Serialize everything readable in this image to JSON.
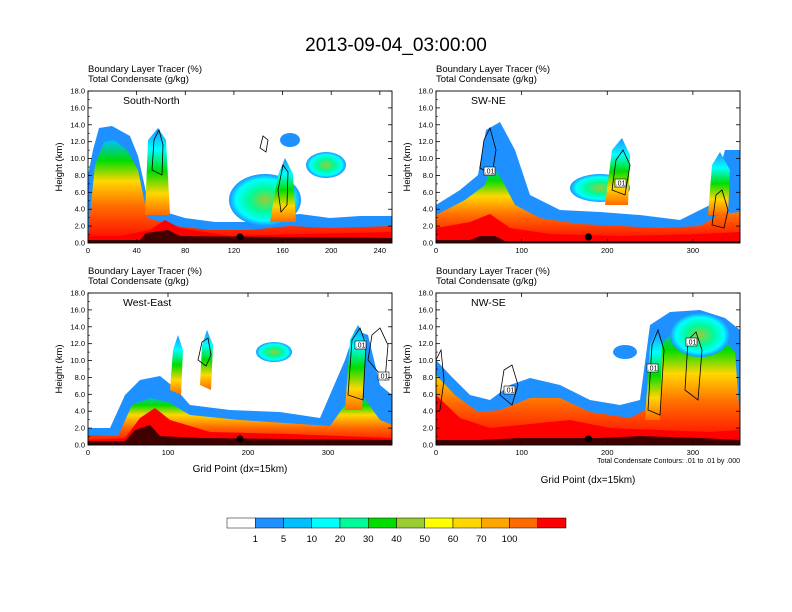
{
  "figure": {
    "title": "2013-09-04_03:00:00",
    "x_axis_label": "Grid Point (dx=15km)",
    "contour_note": "Total Condensate Contours: .01 to .01 by .000"
  },
  "colorbar": {
    "labels": [
      "1",
      "5",
      "10",
      "20",
      "30",
      "40",
      "50",
      "60",
      "70",
      "100"
    ],
    "colors": [
      "#ffffff",
      "#1e90ff",
      "#00bfff",
      "#00ffff",
      "#00fa9a",
      "#00dc00",
      "#9acd32",
      "#ffff00",
      "#ffd700",
      "#ffa500",
      "#ff6a00",
      "#ff0000"
    ]
  },
  "chart_data": [
    {
      "type": "heatmap",
      "panel_label": "South-North",
      "subtitle_lines": [
        "Boundary Layer Tracer   (%)",
        "Total Condensate   (g/kg)"
      ],
      "ylabel": "Height (km)",
      "xlim": [
        0,
        250
      ],
      "ylim": [
        0,
        18
      ],
      "x_ticks": [
        "0",
        "40",
        "80",
        "120",
        "160",
        "200",
        "240"
      ],
      "y_ticks": [
        "0.0",
        "2.0",
        "4.0",
        "6.0",
        "8.0",
        "10.0",
        "12.0",
        "14.0",
        "16.0",
        "18.0"
      ],
      "contour_labels": [],
      "marker_x": 125
    },
    {
      "type": "heatmap",
      "panel_label": "SW-NE",
      "subtitle_lines": [
        "Boundary Layer Tracer   (%)",
        "Total Condensate   (g/kg)"
      ],
      "ylabel": "Height (km)",
      "xlim": [
        0,
        355
      ],
      "ylim": [
        0,
        18
      ],
      "x_ticks": [
        "0",
        "100",
        "200",
        "300"
      ],
      "y_ticks": [
        "0.0",
        "2.0",
        "4.0",
        "6.0",
        "8.0",
        "10.0",
        "12.0",
        "14.0",
        "16.0",
        "18.0"
      ],
      "contour_labels": [
        ".01",
        ".01"
      ],
      "marker_x": 178
    },
    {
      "type": "heatmap",
      "panel_label": "West-East",
      "subtitle_lines": [
        "Boundary Layer Tracer   (%)",
        "Total Condensate   (g/kg)"
      ],
      "ylabel": "Height (km)",
      "xlim": [
        0,
        380
      ],
      "ylim": [
        0,
        18
      ],
      "x_ticks": [
        "0",
        "100",
        "200",
        "300"
      ],
      "y_ticks": [
        "0.0",
        "2.0",
        "4.0",
        "6.0",
        "8.0",
        "10.0",
        "12.0",
        "14.0",
        "16.0",
        "18.0"
      ],
      "contour_labels": [
        ".01",
        ".01"
      ],
      "marker_x": 190
    },
    {
      "type": "heatmap",
      "panel_label": "NW-SE",
      "subtitle_lines": [
        "Boundary Layer Tracer   (%)",
        "Total Condensate   (g/kg)"
      ],
      "ylabel": "Height (km)",
      "xlim": [
        0,
        355
      ],
      "ylim": [
        0,
        18
      ],
      "x_ticks": [
        "0",
        "100",
        "200",
        "300"
      ],
      "y_ticks": [
        "0.0",
        "2.0",
        "4.0",
        "6.0",
        "8.0",
        "10.0",
        "12.0",
        "14.0",
        "16.0",
        "18.0"
      ],
      "contour_labels": [
        ".01",
        ".01",
        ".01"
      ],
      "marker_x": 178
    }
  ]
}
